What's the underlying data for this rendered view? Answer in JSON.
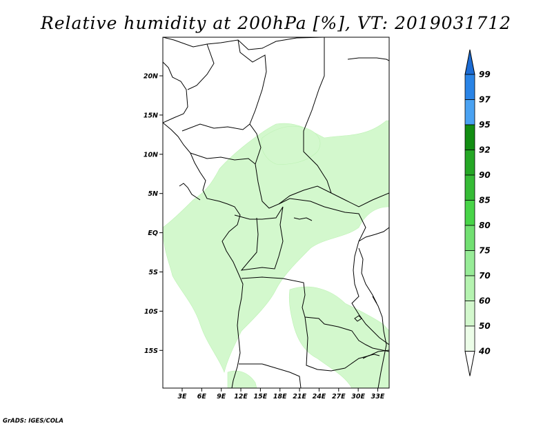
{
  "title": "Relative humidity at 200hPa [%], VT: 2019031712",
  "credit": "GrADS: IGES/COLA",
  "map": {
    "lat_labels": [
      "20N",
      "15N",
      "10N",
      "5N",
      "EQ",
      "5S",
      "10S",
      "15S"
    ],
    "lon_labels": [
      "3E",
      "6E",
      "9E",
      "12E",
      "15E",
      "18E",
      "21E",
      "24E",
      "27E",
      "30E",
      "33E"
    ],
    "humidity_color": "#d3f8cd",
    "humidity_dark": "#bdf2b4"
  },
  "colorbar": {
    "levels": [
      "99",
      "97",
      "95",
      "92",
      "90",
      "85",
      "80",
      "75",
      "70",
      "60",
      "50",
      "40"
    ],
    "colors": [
      "#1c6cd4",
      "#2a84e6",
      "#4aa2f2",
      "#128d12",
      "#25a725",
      "#36bb36",
      "#48d448",
      "#72e072",
      "#97ec97",
      "#b5f3b0",
      "#d3f8cd",
      "#ecfde8",
      "#ffffff"
    ]
  }
}
